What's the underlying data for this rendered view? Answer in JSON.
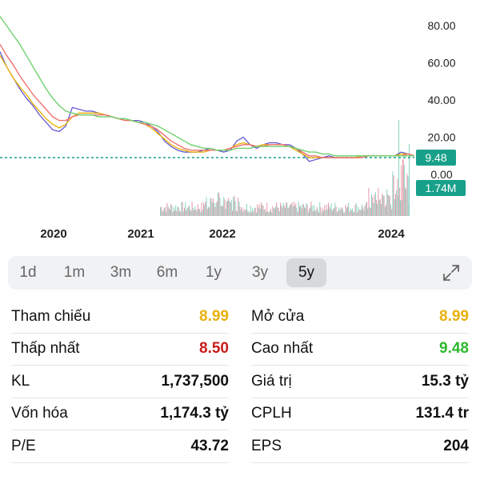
{
  "chart": {
    "y_axis_labels": [
      "80.00",
      "60.00",
      "40.00",
      "20.00",
      "0.00"
    ],
    "x_axis_labels": [
      "2020",
      "2021",
      "2022",
      "2024"
    ],
    "current_price_badge": "9.48",
    "volume_badge": "1.74M",
    "colors": {
      "price_line": "#5a4fcf",
      "ma_fast": "#e8b10d",
      "ma_mid": "#f07070",
      "ma_slow": "#6fd06f",
      "reference_line": "#18a08a",
      "badge": "#18a08a",
      "volume_up": "#e89aa8",
      "volume_down": "#86d4c4"
    }
  },
  "chart_data": {
    "type": "line",
    "x": [
      "2019-01",
      "2019-02",
      "2019-03",
      "2019-04",
      "2019-05",
      "2019-06",
      "2019-07",
      "2019-08",
      "2019-09",
      "2019-10",
      "2019-11",
      "2019-12",
      "2020-01",
      "2020-02",
      "2020-03",
      "2020-04",
      "2020-05",
      "2020-06",
      "2020-07",
      "2020-08",
      "2020-09",
      "2020-10",
      "2020-11",
      "2020-12",
      "2021-01",
      "2021-02",
      "2021-03",
      "2021-04",
      "2021-05",
      "2021-06",
      "2021-07",
      "2021-08",
      "2021-09",
      "2021-10",
      "2021-11",
      "2021-12",
      "2022-01",
      "2022-02",
      "2022-03",
      "2022-04",
      "2022-05",
      "2022-06",
      "2022-07",
      "2022-08",
      "2022-09",
      "2022-10",
      "2022-11",
      "2022-12",
      "2023-01",
      "2023-02",
      "2023-03",
      "2023-04",
      "2023-05",
      "2023-06",
      "2023-07",
      "2023-08",
      "2023-09",
      "2023-10",
      "2023-11",
      "2023-12",
      "2024-01",
      "2024-02",
      "2024-03",
      "2024-04"
    ],
    "series": [
      {
        "values": [
          66,
          58,
          52,
          46,
          41,
          37,
          32,
          28,
          24,
          23,
          26,
          36,
          35,
          34,
          34,
          33,
          32,
          31,
          30,
          30,
          29,
          29,
          28,
          26,
          23,
          18,
          15,
          13,
          12,
          12,
          12,
          13,
          14,
          13,
          12,
          13,
          18,
          20,
          16,
          14,
          16,
          17,
          17,
          16,
          16,
          14,
          11,
          7,
          8,
          9,
          10,
          9,
          9,
          9,
          9,
          10,
          10,
          10,
          10,
          10,
          10,
          12,
          11,
          10
        ]
      },
      {
        "values": [
          64,
          58,
          52,
          47,
          43,
          38,
          34,
          30,
          27,
          25,
          27,
          31,
          33,
          33,
          33,
          33,
          32,
          31,
          30,
          29,
          29,
          28,
          27,
          25,
          22,
          19,
          16,
          14,
          13,
          12,
          12,
          12,
          13,
          13,
          13,
          14,
          16,
          17,
          16,
          15,
          16,
          16,
          16,
          16,
          15,
          13,
          11,
          9,
          9,
          9,
          9,
          9,
          9,
          9,
          9,
          10,
          10,
          10,
          10,
          10,
          10,
          11,
          11,
          10
        ]
      },
      {
        "values": [
          70,
          64,
          59,
          53,
          48,
          43,
          39,
          35,
          31,
          29,
          29,
          31,
          32,
          32,
          32,
          32,
          32,
          31,
          30,
          29,
          29,
          28,
          27,
          26,
          24,
          21,
          18,
          16,
          14,
          13,
          13,
          13,
          13,
          13,
          13,
          14,
          15,
          16,
          16,
          15,
          15,
          16,
          16,
          16,
          15,
          14,
          12,
          10,
          10,
          9,
          9,
          9,
          9,
          9,
          9,
          9,
          10,
          10,
          10,
          10,
          10,
          10,
          11,
          10
        ]
      },
      {
        "values": [
          85,
          80,
          75,
          70,
          64,
          58,
          52,
          46,
          41,
          37,
          34,
          33,
          32,
          32,
          32,
          31,
          31,
          31,
          30,
          30,
          29,
          28,
          28,
          27,
          26,
          24,
          22,
          20,
          18,
          16,
          15,
          14,
          14,
          13,
          13,
          13,
          14,
          14,
          14,
          15,
          15,
          15,
          15,
          15,
          15,
          14,
          13,
          12,
          12,
          11,
          11,
          10,
          10,
          10,
          10,
          10,
          10,
          10,
          10,
          10,
          10,
          10,
          10,
          10
        ]
      }
    ],
    "volume_badge": "1.74M",
    "ylim": [
      0,
      90
    ],
    "y_ticks": [
      0,
      20,
      40,
      60,
      80
    ],
    "reference_price": 9.48,
    "x_tick_labels": [
      "2020",
      "2021",
      "2022",
      "2024"
    ]
  },
  "range_tabs": [
    "1d",
    "1m",
    "3m",
    "6m",
    "1y",
    "3y",
    "5y"
  ],
  "active_range": "5y",
  "stats": [
    {
      "label": "Tham chiếu",
      "value": "8.99",
      "color": "yellow"
    },
    {
      "label": "Mở cửa",
      "value": "8.99",
      "color": "yellow"
    },
    {
      "label": "Thấp nhất",
      "value": "8.50",
      "color": "red"
    },
    {
      "label": "Cao nhất",
      "value": "9.48",
      "color": "green"
    },
    {
      "label": "KL",
      "value": "1,737,500",
      "color": "default"
    },
    {
      "label": "Giá trị",
      "value": "15.3 tỷ",
      "color": "default"
    },
    {
      "label": "Vốn hóa",
      "value": "1,174.3 tỷ",
      "color": "default"
    },
    {
      "label": "CPLH",
      "value": "131.4 tr",
      "color": "default"
    },
    {
      "label": "P/E",
      "value": "43.72",
      "color": "default"
    },
    {
      "label": "EPS",
      "value": "204",
      "color": "default"
    }
  ]
}
